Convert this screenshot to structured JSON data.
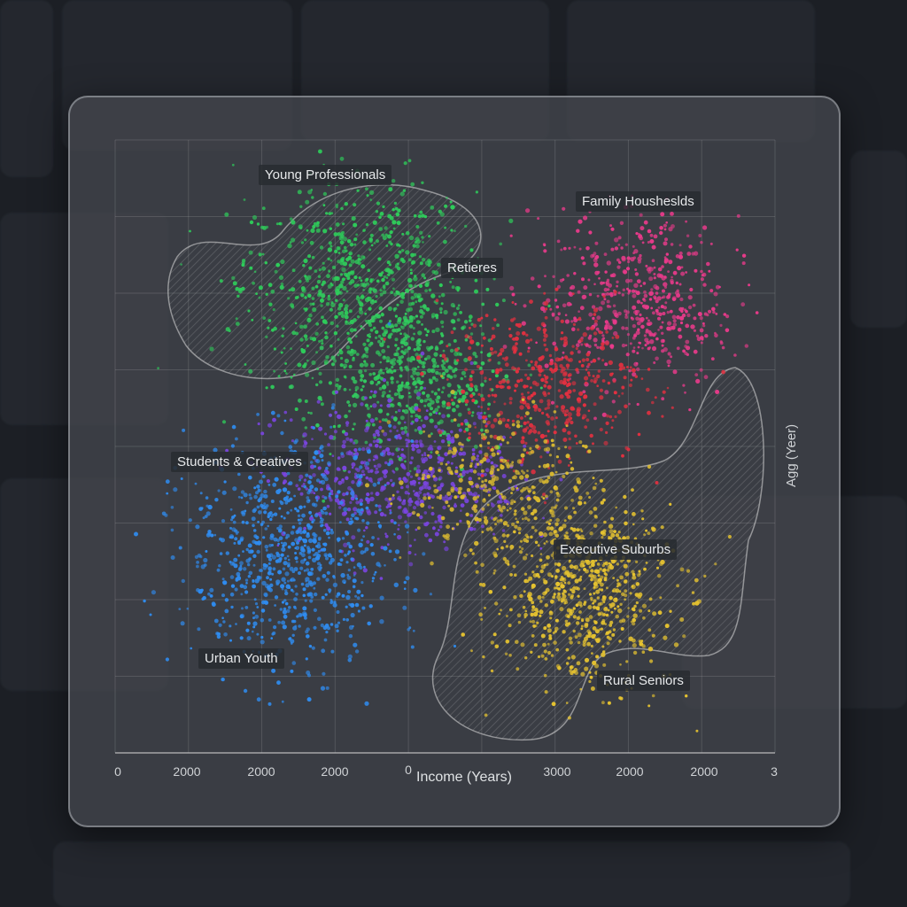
{
  "chart_data": {
    "type": "scatter",
    "title": "",
    "xlabel": "Income (Years)",
    "ylabel": "Agg (Yeer)",
    "x_tick_labels": [
      "0",
      "2000",
      "2000",
      "2000",
      "0",
      "",
      "3000",
      "2000",
      "2000",
      "3"
    ],
    "grid": true,
    "legend": "none",
    "clusters": [
      {
        "name": "Young Professionals",
        "color": "#2ecc5a",
        "center": [
          3.3,
          6.1
        ],
        "spread": [
          0.8,
          0.7
        ],
        "n": 700
      },
      {
        "name": "Retieres",
        "color": "#33c860",
        "center": [
          4.1,
          4.9
        ],
        "spread": [
          0.6,
          0.5
        ],
        "n": 500
      },
      {
        "name": "Students & Creatives",
        "color": "#7a45e0",
        "center": [
          3.9,
          3.6
        ],
        "spread": [
          0.8,
          0.45
        ],
        "n": 600
      },
      {
        "name": "Urban Youth",
        "color": "#2f8cf0",
        "center": [
          2.4,
          2.6
        ],
        "spread": [
          0.7,
          0.7
        ],
        "n": 800
      },
      {
        "name": "Family Housheslds",
        "color": "#e83a8a",
        "center": [
          7.1,
          5.9
        ],
        "spread": [
          0.7,
          0.55
        ],
        "n": 550
      },
      {
        "name": "",
        "color": "#e53040",
        "center": [
          5.8,
          4.8
        ],
        "spread": [
          0.7,
          0.5
        ],
        "n": 450
      },
      {
        "name": "Executive Suburbs",
        "color": "#e6c330",
        "center": [
          6.4,
          2.1
        ],
        "spread": [
          0.6,
          0.6
        ],
        "n": 650
      },
      {
        "name": "Rural Seniors",
        "color": "#d8b830",
        "center": [
          5.2,
          3.4
        ],
        "spread": [
          0.6,
          0.5
        ],
        "n": 350
      }
    ],
    "annotations": [
      "Young Professionals",
      "Family Housheslds",
      "Retieres",
      "Students & Creatives",
      "Executive Suburbs",
      "Urban Youth",
      "Rural Seniors"
    ]
  }
}
